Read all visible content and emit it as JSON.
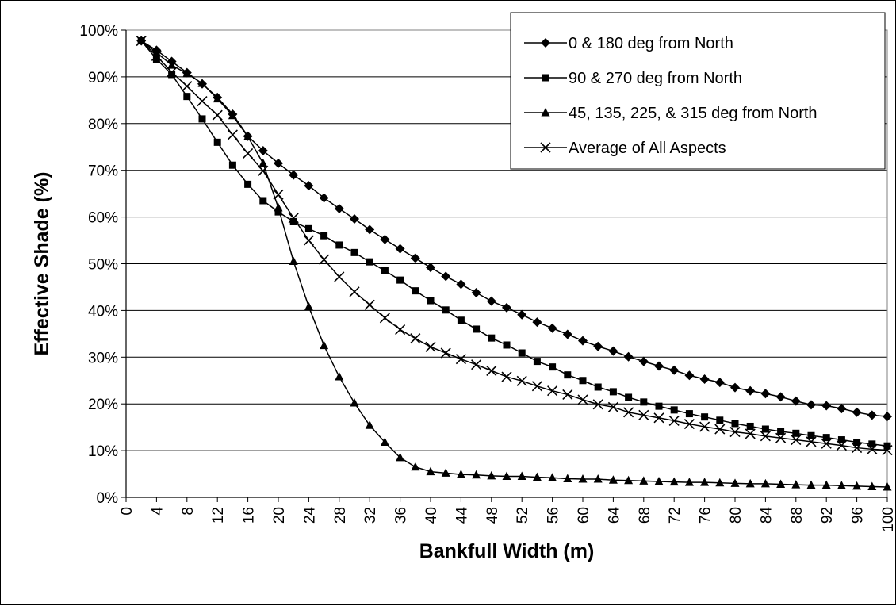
{
  "chart_data": {
    "type": "line",
    "xlabel": "Bankfull Width (m)",
    "ylabel": "Effective Shade (%)",
    "xlim": [
      0,
      100
    ],
    "ylim": [
      0,
      100
    ],
    "x_ticks": [
      "0",
      "4",
      "8",
      "12",
      "16",
      "20",
      "24",
      "28",
      "32",
      "36",
      "40",
      "44",
      "48",
      "52",
      "56",
      "60",
      "64",
      "68",
      "72",
      "76",
      "80",
      "84",
      "88",
      "92",
      "96",
      "100"
    ],
    "y_ticks": [
      "0%",
      "10%",
      "20%",
      "30%",
      "40%",
      "50%",
      "60%",
      "70%",
      "80%",
      "90%",
      "100%"
    ],
    "grid": "horizontal",
    "legend_position": "top-right",
    "x": [
      2,
      4,
      6,
      8,
      10,
      12,
      14,
      16,
      18,
      20,
      22,
      24,
      26,
      28,
      30,
      32,
      34,
      36,
      38,
      40,
      42,
      44,
      46,
      48,
      50,
      52,
      54,
      56,
      58,
      60,
      62,
      64,
      66,
      68,
      70,
      72,
      74,
      76,
      78,
      80,
      82,
      84,
      86,
      88,
      90,
      92,
      94,
      96,
      98,
      100
    ],
    "series": [
      {
        "name": "0 & 180 deg from North",
        "marker": "diamond",
        "values": [
          97.7,
          95.7,
          93.3,
          90.9,
          88.5,
          85.6,
          82,
          77.3,
          74.2,
          71.5,
          69,
          66.7,
          64.1,
          61.8,
          59.6,
          57.3,
          55.2,
          53.2,
          51.2,
          49.2,
          47.3,
          45.6,
          43.8,
          42,
          40.6,
          39.1,
          37.5,
          36.2,
          34.9,
          33.5,
          32.3,
          31.3,
          30.1,
          29.1,
          28.1,
          27.2,
          26.1,
          25.3,
          24.6,
          23.5,
          22.8,
          22.2,
          21.5,
          20.6,
          19.8,
          19.6,
          19.0,
          18.2,
          17.6,
          17.3
        ]
      },
      {
        "name": "90 & 270 deg from North",
        "marker": "square",
        "values": [
          97.7,
          93.8,
          90.5,
          85.8,
          81,
          76,
          71.1,
          67,
          63.5,
          61.1,
          59,
          57.5,
          56,
          54,
          52.4,
          50.4,
          48.5,
          46.5,
          44.2,
          42.1,
          40.1,
          37.9,
          36.0,
          34.1,
          32.6,
          30.9,
          29.1,
          27.9,
          26.2,
          25.0,
          23.6,
          22.6,
          21.4,
          20.4,
          19.5,
          18.7,
          17.9,
          17.2,
          16.5,
          15.8,
          15.2,
          14.6,
          14.1,
          13.7,
          13.2,
          12.8,
          12.3,
          11.8,
          11.4,
          11.0
        ]
      },
      {
        "name": "45, 135, 225, & 315 deg from North",
        "marker": "triangle",
        "values": [
          97.7,
          95.2,
          92.5,
          90.7,
          88.6,
          85.3,
          81.7,
          77.2,
          71.5,
          62,
          50.5,
          40.8,
          32.5,
          25.8,
          20.2,
          15.4,
          11.8,
          8.5,
          6.5,
          5.5,
          5.2,
          4.9,
          4.8,
          4.6,
          4.5,
          4.5,
          4.3,
          4.2,
          4.0,
          3.9,
          3.9,
          3.7,
          3.6,
          3.5,
          3.4,
          3.3,
          3.2,
          3.2,
          3.1,
          3.0,
          2.9,
          2.9,
          2.8,
          2.7,
          2.6,
          2.6,
          2.5,
          2.4,
          2.3,
          2.2
        ]
      },
      {
        "name": "Average of All Aspects",
        "marker": "x",
        "values": [
          97.7,
          94.5,
          91,
          88,
          84.8,
          81.8,
          77.6,
          73.6,
          69.9,
          64.8,
          59.8,
          55,
          50.9,
          47.2,
          44,
          41.2,
          38.4,
          35.9,
          34,
          32.2,
          30.9,
          29.6,
          28.4,
          27.1,
          25.8,
          24.9,
          23.8,
          22.8,
          22,
          20.9,
          19.9,
          19.3,
          18.2,
          17.6,
          17,
          16.4,
          15.7,
          15.1,
          14.6,
          14.0,
          13.6,
          13.1,
          12.7,
          12.3,
          11.9,
          11.5,
          11.1,
          10.6,
          10.3,
          10.1
        ]
      }
    ]
  }
}
